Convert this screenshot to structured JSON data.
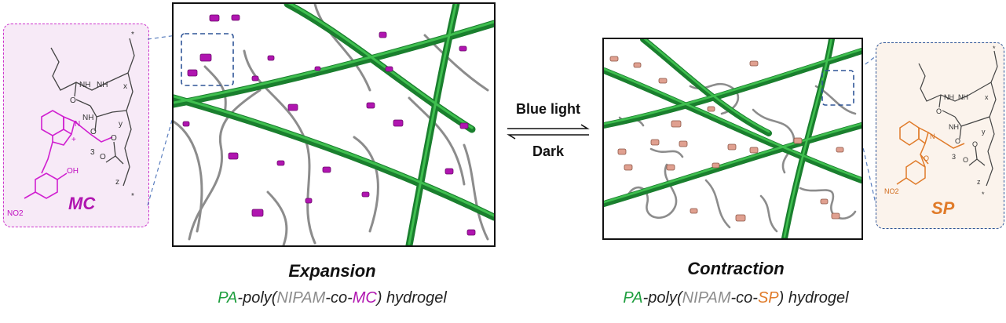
{
  "left": {
    "title": "Expansion",
    "subtitle": {
      "pa": "PA",
      "dash1": "-poly(",
      "nipam": "NIPAM",
      "co": "-co-",
      "monomer": "MC",
      "rest": ") hydrogel"
    },
    "molecule_label": "MC",
    "chem_box_color": "#cc33cc",
    "chem_box_fill": "#f7eaf7",
    "mark_color": "#b015b0"
  },
  "right": {
    "title": "Contraction",
    "subtitle": {
      "pa": "PA",
      "dash1": "-poly(",
      "nipam": "NIPAM",
      "co": "-co-",
      "monomer": "SP",
      "rest": ") hydrogel"
    },
    "molecule_label": "SP",
    "chem_box_color": "#2f5597",
    "chem_box_fill": "#fbf3ec",
    "mark_color": "#e0a090"
  },
  "equilibrium": {
    "forward": "Blue light",
    "backward": "Dark"
  },
  "atoms": {
    "nh": "NH",
    "n": "N",
    "o": "O",
    "oh": "OH",
    "no2": "NO2",
    "plus": "+",
    "star": "*",
    "x": "x",
    "y": "y",
    "z": "z",
    "three": "3"
  },
  "colors": {
    "pa_green": "#1e9e3e",
    "nipam_gray": "#8c8c8c",
    "mc_magenta": "#b015b0",
    "sp_orange": "#e07b2a"
  }
}
